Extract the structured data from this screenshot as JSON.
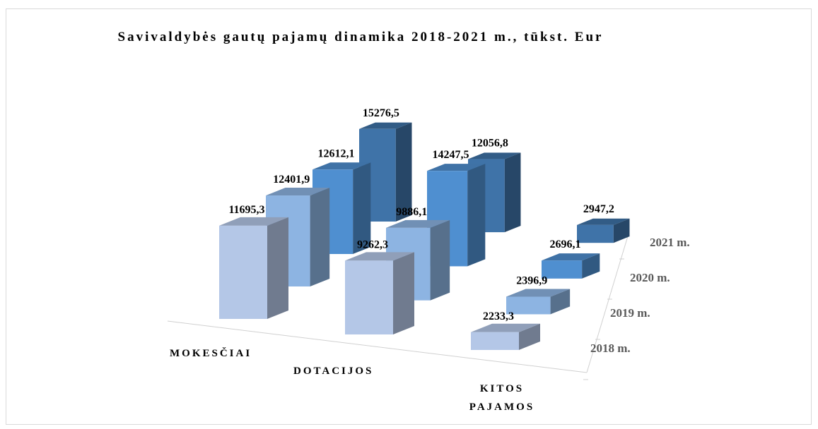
{
  "chart_data": {
    "type": "bar3d",
    "title": "Savivaldybės gautų pajamų dinamika 2018-2021 m., tūkst. Eur",
    "categories": [
      "MOKESČIAI",
      "DOTACIJOS",
      "KITOS PAJAMOS"
    ],
    "series": [
      {
        "name": "2018 m.",
        "color": "#b4c7e7",
        "values": [
          11695.3,
          9262.3,
          2233.3
        ],
        "value_labels": [
          "11695,3",
          "9262,3",
          "2233,3"
        ]
      },
      {
        "name": "2019 m.",
        "color": "#8db4e2",
        "values": [
          12401.9,
          9886.1,
          2396.9
        ],
        "value_labels": [
          "12401,9",
          "9886,1",
          "2396,9"
        ]
      },
      {
        "name": "2020 m.",
        "color": "#4f8fd0",
        "values": [
          12612.1,
          14247.5,
          2696.1
        ],
        "value_labels": [
          "12612,1",
          "14247,5",
          "2696,1"
        ]
      },
      {
        "name": "2021 m.",
        "color": "#3f73a8",
        "values": [
          15276.5,
          12056.8,
          2947.2
        ],
        "value_labels": [
          "15276,5",
          "12056,8",
          "2947,2"
        ]
      }
    ]
  }
}
